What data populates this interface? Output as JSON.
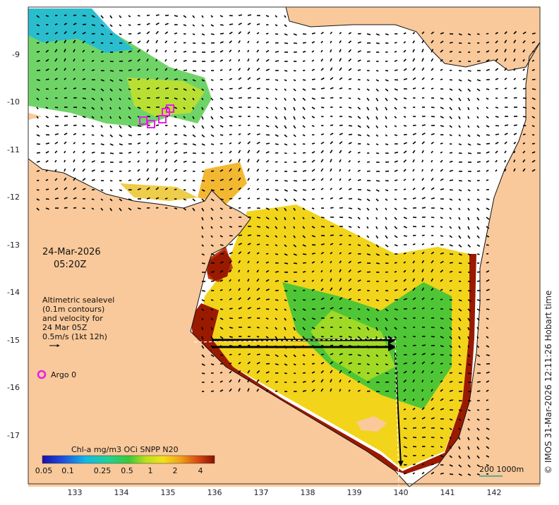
{
  "map": {
    "date": "24-Mar-2026",
    "time": "05:20Z",
    "legend_lines": [
      "Altimetric sealevel",
      "(0.1m contours)",
      "and velocity for",
      "24 Mar 05Z",
      "0.5m/s (1kt 12h)"
    ],
    "argo_label": "Argo 0",
    "colorbar_title": "Chl-a mg/m3 OCi SNPP N20",
    "colorbar_ticks": [
      "0.05",
      "0.1",
      "0.25",
      "0.5",
      "1",
      "2",
      "4"
    ],
    "scale_label": "200  1000m",
    "credit": "© IMOS 31-Mar-2026 12:11:26 Hobart time",
    "x_ticks": [
      "133",
      "134",
      "135",
      "136",
      "137",
      "138",
      "139",
      "140",
      "141",
      "142"
    ],
    "y_ticks": [
      "-9",
      "-10",
      "-11",
      "-12",
      "-13",
      "-14",
      "-15",
      "-16",
      "-17"
    ],
    "colors": {
      "land": "#f9c99b",
      "ocean": "#ffffff",
      "argo": "#e81ce8",
      "high_chl": "#9a1a00",
      "mid_chl": "#f2d21a",
      "low_chl": "#2fb52f"
    }
  }
}
